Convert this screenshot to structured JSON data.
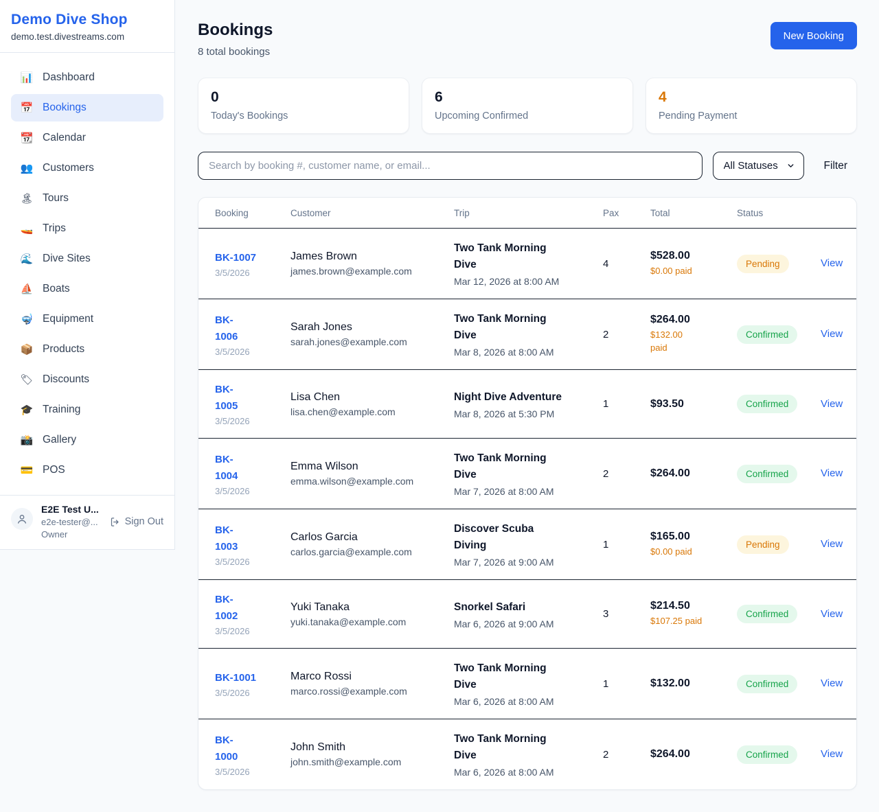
{
  "colors": {
    "accent": "#2563eb",
    "warning": "#d97706",
    "confirmed_text": "#16a34a",
    "confirmed_bg": "#e4f8ec",
    "pending_text": "#d97706",
    "pending_bg": "#fdf5dd",
    "row_divider": "#1a2330",
    "page_bg": "#f8fafc"
  },
  "sidebar": {
    "brand": "Demo Dive Shop",
    "domain": "demo.test.divestreams.com",
    "items": [
      {
        "icon": "📊",
        "icon_name": "bar-chart-icon",
        "label": "Dashboard",
        "active": false
      },
      {
        "icon": "📅",
        "icon_name": "calendar-date-icon",
        "label": "Bookings",
        "active": true
      },
      {
        "icon": "📆",
        "icon_name": "tear-off-calendar-icon",
        "label": "Calendar",
        "active": false
      },
      {
        "icon": "👥",
        "icon_name": "people-icon",
        "label": "Customers",
        "active": false
      },
      {
        "icon": "🏝",
        "icon_name": "island-icon",
        "label": "Tours",
        "active": false
      },
      {
        "icon": "🚤",
        "icon_name": "speedboat-icon",
        "label": "Trips",
        "active": false
      },
      {
        "icon": "🌊",
        "icon_name": "wave-icon",
        "label": "Dive Sites",
        "active": false
      },
      {
        "icon": "⛵",
        "icon_name": "sailboat-icon",
        "label": "Boats",
        "active": false
      },
      {
        "icon": "🤿",
        "icon_name": "diving-mask-icon",
        "label": "Equipment",
        "active": false
      },
      {
        "icon": "📦",
        "icon_name": "package-icon",
        "label": "Products",
        "active": false
      },
      {
        "icon": "🏷",
        "icon_name": "tag-icon",
        "label": "Discounts",
        "active": false
      },
      {
        "icon": "🎓",
        "icon_name": "graduation-cap-icon",
        "label": "Training",
        "active": false
      },
      {
        "icon": "📸",
        "icon_name": "camera-icon",
        "label": "Gallery",
        "active": false
      },
      {
        "icon": "💳",
        "icon_name": "credit-card-icon",
        "label": "POS",
        "active": false
      }
    ],
    "user": {
      "name": "E2E Test U...",
      "email": "e2e-tester@...",
      "role": "Owner",
      "sign_out_label": "Sign Out"
    }
  },
  "header": {
    "title": "Bookings",
    "subtitle": "8 total bookings",
    "new_booking_label": "New Booking"
  },
  "stats": [
    {
      "value": "0",
      "label": "Today's Bookings",
      "warning": false
    },
    {
      "value": "6",
      "label": "Upcoming Confirmed",
      "warning": false
    },
    {
      "value": "4",
      "label": "Pending Payment",
      "warning": true
    }
  ],
  "filters": {
    "search_placeholder": "Search by booking #, customer name, or email...",
    "status_selected": "All Statuses",
    "filter_label": "Filter"
  },
  "table": {
    "headers": [
      "Booking",
      "Customer",
      "Trip",
      "Pax",
      "Total",
      "Status"
    ],
    "rows": [
      {
        "id": "BK-1007",
        "date": "3/5/2026",
        "customer": "James Brown",
        "email": "james.brown@example.com",
        "trip": "Two Tank Morning\nDive",
        "trip_time": "Mar 12, 2026 at 8:00 AM",
        "pax": "4",
        "total": "$528.00",
        "paid": "$0.00 paid",
        "status": "Pending",
        "action": "View"
      },
      {
        "id": "BK-\n1006",
        "date": "3/5/2026",
        "customer": "Sarah Jones",
        "email": "sarah.jones@example.com",
        "trip": "Two Tank Morning\nDive",
        "trip_time": "Mar 8, 2026 at 8:00 AM",
        "pax": "2",
        "total": "$264.00",
        "paid": "$132.00\npaid",
        "status": "Confirmed",
        "action": "View"
      },
      {
        "id": "BK-\n1005",
        "date": "3/5/2026",
        "customer": "Lisa Chen",
        "email": "lisa.chen@example.com",
        "trip": "Night Dive Adventure",
        "trip_time": "Mar 8, 2026 at 5:30 PM",
        "pax": "1",
        "total": "$93.50",
        "paid": "",
        "status": "Confirmed",
        "action": "View"
      },
      {
        "id": "BK-\n1004",
        "date": "3/5/2026",
        "customer": "Emma Wilson",
        "email": "emma.wilson@example.com",
        "trip": "Two Tank Morning\nDive",
        "trip_time": "Mar 7, 2026 at 8:00 AM",
        "pax": "2",
        "total": "$264.00",
        "paid": "",
        "status": "Confirmed",
        "action": "View"
      },
      {
        "id": "BK-\n1003",
        "date": "3/5/2026",
        "customer": "Carlos Garcia",
        "email": "carlos.garcia@example.com",
        "trip": "Discover Scuba\nDiving",
        "trip_time": "Mar 7, 2026 at 9:00 AM",
        "pax": "1",
        "total": "$165.00",
        "paid": "$0.00 paid",
        "status": "Pending",
        "action": "View"
      },
      {
        "id": "BK-\n1002",
        "date": "3/5/2026",
        "customer": "Yuki Tanaka",
        "email": "yuki.tanaka@example.com",
        "trip": "Snorkel Safari",
        "trip_time": "Mar 6, 2026 at 9:00 AM",
        "pax": "3",
        "total": "$214.50",
        "paid": "$107.25 paid",
        "status": "Confirmed",
        "action": "View"
      },
      {
        "id": "BK-1001",
        "date": "3/5/2026",
        "customer": "Marco Rossi",
        "email": "marco.rossi@example.com",
        "trip": "Two Tank Morning\nDive",
        "trip_time": "Mar 6, 2026 at 8:00 AM",
        "pax": "1",
        "total": "$132.00",
        "paid": "",
        "status": "Confirmed",
        "action": "View"
      },
      {
        "id": "BK-\n1000",
        "date": "3/5/2026",
        "customer": "John Smith",
        "email": "john.smith@example.com",
        "trip": "Two Tank Morning\nDive",
        "trip_time": "Mar 6, 2026 at 8:00 AM",
        "pax": "2",
        "total": "$264.00",
        "paid": "",
        "status": "Confirmed",
        "action": "View"
      }
    ]
  }
}
